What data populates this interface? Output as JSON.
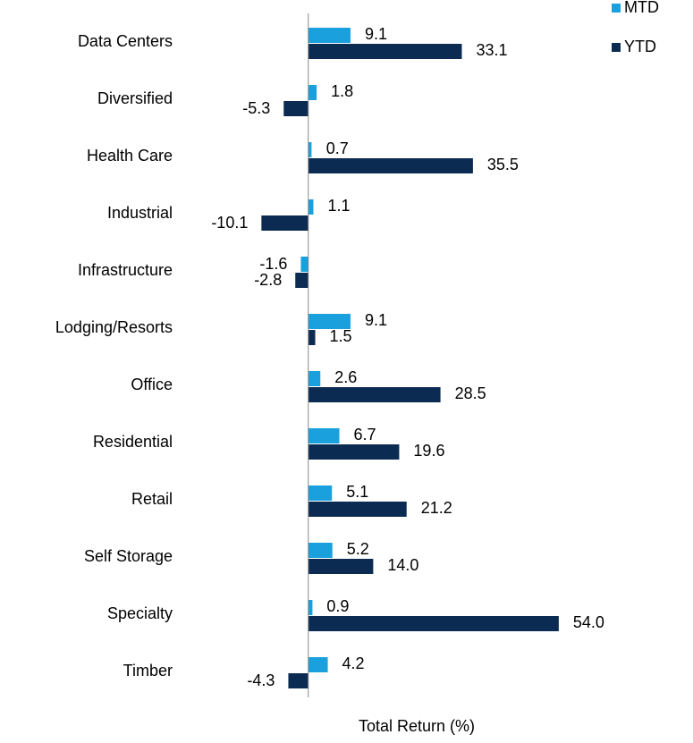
{
  "chart_data": {
    "type": "hbar",
    "categories": [
      "Data Centers",
      "Diversified",
      "Health Care",
      "Industrial",
      "Infrastructure",
      "Lodging/Resorts",
      "Office",
      "Residential",
      "Retail",
      "Self Storage",
      "Specialty",
      "Timber"
    ],
    "series": [
      {
        "name": "MTD",
        "color": "#1aa0dc",
        "values": [
          9.1,
          1.8,
          0.7,
          1.1,
          -1.6,
          9.1,
          2.6,
          6.7,
          5.1,
          5.2,
          0.9,
          4.2
        ],
        "value_labels": [
          "9.1",
          "1.8",
          "0.7",
          "1.1",
          "-1.6",
          "9.1",
          "2.6",
          "6.7",
          "5.1",
          "5.2",
          "0.9",
          "4.2"
        ]
      },
      {
        "name": "YTD",
        "color": "#0b2b52",
        "values": [
          33.1,
          -5.3,
          35.5,
          -10.1,
          -2.8,
          1.5,
          28.5,
          19.6,
          21.2,
          14.0,
          54.0,
          -4.3
        ],
        "value_labels": [
          "33.1",
          "-5.3",
          "35.5",
          "-10.1",
          "-2.8",
          "1.5",
          "28.5",
          "19.6",
          "21.2",
          "14.0",
          "54.0",
          "-4.3"
        ]
      }
    ],
    "xlabel": "Total Return (%)",
    "xlim": [
      -20,
      60
    ],
    "legend": "top-right"
  }
}
